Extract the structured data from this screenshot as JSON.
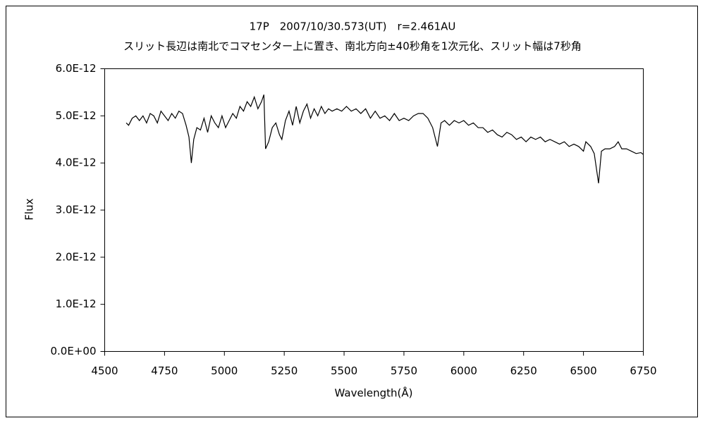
{
  "chart_data": {
    "type": "line",
    "title": "17P　2007/10/30.573(UT)　r=2.461AU",
    "subtitle": "スリット長辺は南北でコマセンター上に置き、南北方向±40秒角を1次元化、スリット幅は7秒角",
    "x_label": "Wavelength(Å)",
    "y_label": "Flux",
    "color": "#000000",
    "grid": false,
    "xlim": [
      4500,
      6750
    ],
    "xticks": [
      4500,
      4750,
      5000,
      5250,
      5500,
      5750,
      6000,
      6250,
      6500,
      6750
    ],
    "ylim": [
      0,
      6e-12
    ],
    "yticks": [
      {
        "value": 0,
        "label": "0.0E+00"
      },
      {
        "value": 1e-12,
        "label": "1.0E-12"
      },
      {
        "value": 2e-12,
        "label": "2.0E-12"
      },
      {
        "value": 3e-12,
        "label": "3.0E-12"
      },
      {
        "value": 4e-12,
        "label": "4.0E-12"
      },
      {
        "value": 5e-12,
        "label": "5.0E-12"
      },
      {
        "value": 6e-12,
        "label": "6.0E-12"
      }
    ],
    "x": [
      4590,
      4600,
      4615,
      4630,
      4645,
      4660,
      4675,
      4690,
      4705,
      4720,
      4735,
      4750,
      4765,
      4780,
      4795,
      4810,
      4825,
      4840,
      4852,
      4862,
      4872,
      4885,
      4900,
      4915,
      4930,
      4945,
      4960,
      4975,
      4990,
      5005,
      5020,
      5035,
      5050,
      5065,
      5080,
      5095,
      5110,
      5125,
      5140,
      5155,
      5165,
      5172,
      5185,
      5200,
      5215,
      5230,
      5240,
      5255,
      5270,
      5285,
      5300,
      5315,
      5330,
      5345,
      5360,
      5375,
      5390,
      5405,
      5420,
      5435,
      5450,
      5470,
      5490,
      5510,
      5530,
      5550,
      5570,
      5590,
      5610,
      5630,
      5650,
      5670,
      5690,
      5710,
      5730,
      5750,
      5770,
      5790,
      5810,
      5830,
      5850,
      5870,
      5890,
      5905,
      5920,
      5940,
      5960,
      5980,
      6000,
      6020,
      6040,
      6060,
      6080,
      6100,
      6120,
      6140,
      6160,
      6180,
      6200,
      6220,
      6240,
      6260,
      6280,
      6300,
      6320,
      6340,
      6360,
      6380,
      6400,
      6420,
      6440,
      6460,
      6480,
      6500,
      6510,
      6530,
      6545,
      6563,
      6575,
      6590,
      6610,
      6630,
      6645,
      6660,
      6680,
      6700,
      6720,
      6740,
      6750
    ],
    "values": [
      4.85e-12,
      4.8e-12,
      4.95e-12,
      5e-12,
      4.9e-12,
      5e-12,
      4.85e-12,
      5.05e-12,
      5e-12,
      4.85e-12,
      5.1e-12,
      5e-12,
      4.9e-12,
      5.05e-12,
      4.95e-12,
      5.1e-12,
      5.05e-12,
      4.8e-12,
      4.55e-12,
      4e-12,
      4.5e-12,
      4.75e-12,
      4.7e-12,
      4.95e-12,
      4.65e-12,
      5e-12,
      4.85e-12,
      4.75e-12,
      5e-12,
      4.75e-12,
      4.9e-12,
      5.05e-12,
      4.95e-12,
      5.2e-12,
      5.1e-12,
      5.3e-12,
      5.2e-12,
      5.4e-12,
      5.15e-12,
      5.3e-12,
      5.45e-12,
      4.3e-12,
      4.45e-12,
      4.75e-12,
      4.85e-12,
      4.6e-12,
      4.5e-12,
      4.9e-12,
      5.1e-12,
      4.8e-12,
      5.2e-12,
      4.85e-12,
      5.1e-12,
      5.25e-12,
      4.95e-12,
      5.15e-12,
      5e-12,
      5.2e-12,
      5.05e-12,
      5.15e-12,
      5.1e-12,
      5.15e-12,
      5.1e-12,
      5.2e-12,
      5.1e-12,
      5.15e-12,
      5.05e-12,
      5.15e-12,
      4.95e-12,
      5.1e-12,
      4.95e-12,
      5e-12,
      4.9e-12,
      5.05e-12,
      4.9e-12,
      4.95e-12,
      4.9e-12,
      5e-12,
      5.05e-12,
      5.05e-12,
      4.95e-12,
      4.75e-12,
      4.35e-12,
      4.85e-12,
      4.9e-12,
      4.8e-12,
      4.9e-12,
      4.85e-12,
      4.9e-12,
      4.8e-12,
      4.85e-12,
      4.75e-12,
      4.75e-12,
      4.65e-12,
      4.7e-12,
      4.6e-12,
      4.55e-12,
      4.65e-12,
      4.6e-12,
      4.5e-12,
      4.55e-12,
      4.45e-12,
      4.55e-12,
      4.5e-12,
      4.55e-12,
      4.45e-12,
      4.5e-12,
      4.45e-12,
      4.4e-12,
      4.45e-12,
      4.35e-12,
      4.4e-12,
      4.35e-12,
      4.25e-12,
      4.45e-12,
      4.35e-12,
      4.2e-12,
      3.57e-12,
      4.25e-12,
      4.3e-12,
      4.3e-12,
      4.35e-12,
      4.45e-12,
      4.3e-12,
      4.3e-12,
      4.25e-12,
      4.2e-12,
      4.22e-12,
      4.18e-12
    ]
  }
}
